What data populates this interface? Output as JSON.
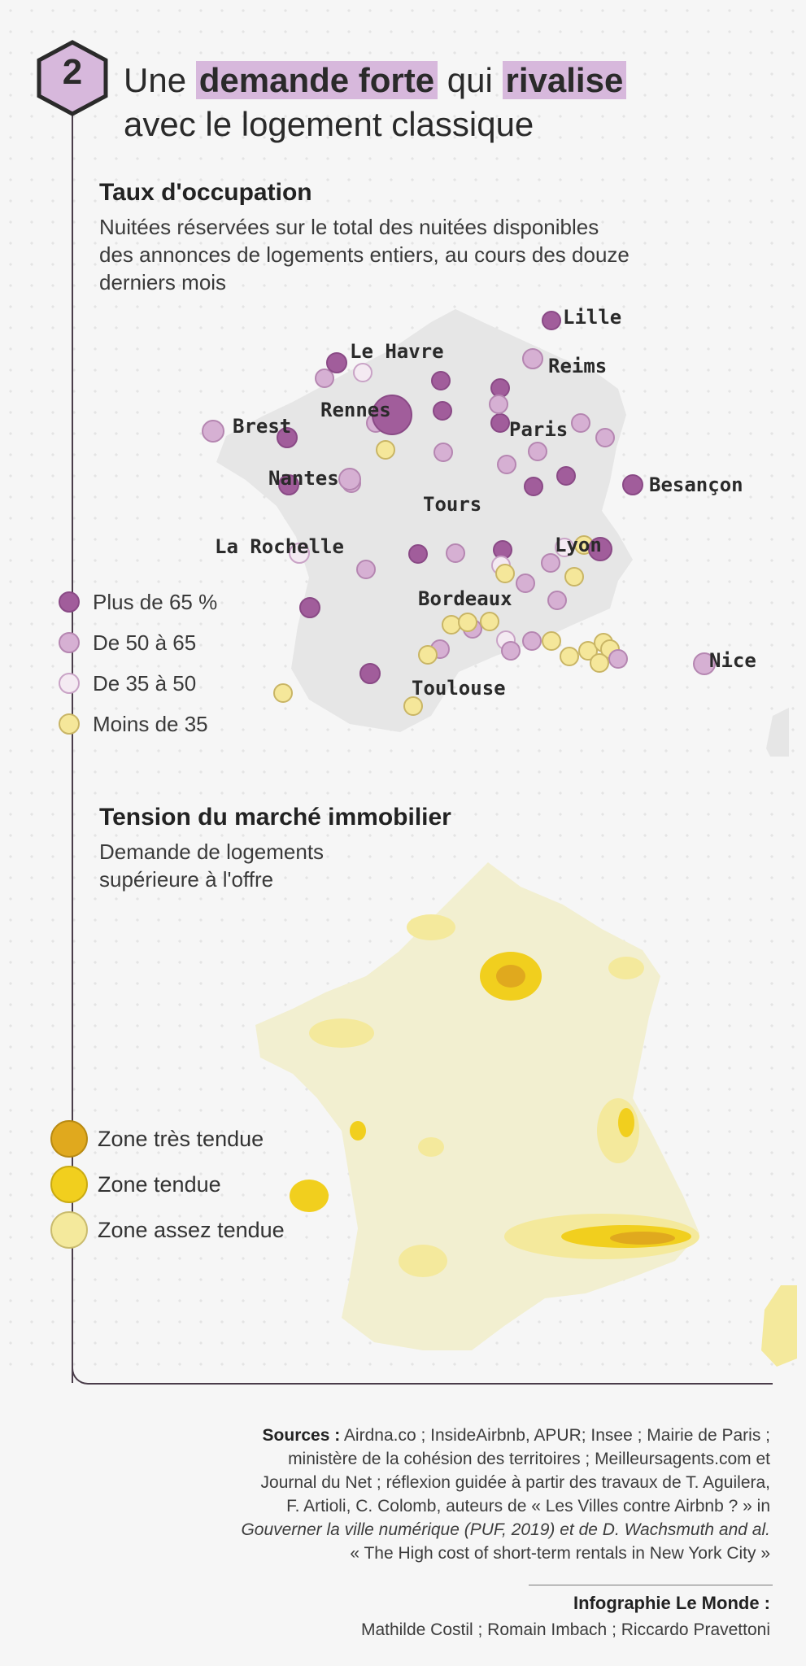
{
  "header": {
    "number": "2",
    "title_part1": "Une",
    "title_hl1": "demande forte",
    "title_part2": "qui",
    "title_hl2": "rivalise",
    "title_line2": "avec le logement classique"
  },
  "occupancy": {
    "title": "Taux d'occupation",
    "description": [
      "Nuitées réservées sur le total des nuitées disponibles",
      "des annonces de logements entiers, au cours des douze",
      "derniers mois"
    ],
    "legend": [
      {
        "label": "Plus de 65 %",
        "category": "over65",
        "fill": "#a15d9b",
        "stroke": "#8a4a86"
      },
      {
        "label": "De 50 à 65",
        "category": "50to65",
        "fill": "#d6b0d3",
        "stroke": "#b586b1"
      },
      {
        "label": "De 35 à 50",
        "category": "35to50",
        "fill": "#f4eaf2",
        "stroke": "#c9a3c6"
      },
      {
        "label": "Moins de 35",
        "category": "under35",
        "fill": "#f5e79a",
        "stroke": "#c9b565"
      }
    ],
    "cities": [
      {
        "name": "Lille",
        "category": "over65"
      },
      {
        "name": "Le Havre",
        "category": "over65"
      },
      {
        "name": "Reims",
        "category": "50to65"
      },
      {
        "name": "Paris",
        "category": "over65"
      },
      {
        "name": "Brest",
        "category": "50to65"
      },
      {
        "name": "Rennes",
        "category": "over65"
      },
      {
        "name": "Nantes",
        "category": "over65"
      },
      {
        "name": "Tours",
        "category": "50to65"
      },
      {
        "name": "Besançon",
        "category": "over65"
      },
      {
        "name": "La Rochelle",
        "category": "35to50"
      },
      {
        "name": "Lyon",
        "category": "over65"
      },
      {
        "name": "Bordeaux",
        "category": "over65"
      },
      {
        "name": "Toulouse",
        "category": "over65"
      },
      {
        "name": "Nice",
        "category": "50to65"
      }
    ]
  },
  "tension": {
    "title": "Tension du marché immobilier",
    "description": [
      "Demande de logements",
      "supérieure à l'offre"
    ],
    "legend": [
      {
        "label": "Zone très tendue",
        "fill": "#e0a91e",
        "stroke": "#b88a12"
      },
      {
        "label": "Zone tendue",
        "fill": "#f1cf1e",
        "stroke": "#c9aa12"
      },
      {
        "label": "Zone assez tendue",
        "fill": "#f4e99c",
        "stroke": "#c9bb6e"
      }
    ]
  },
  "sources": {
    "label": "Sources :",
    "text": [
      "Airdna.co ; InsideAirbnb, APUR; Insee ; Mairie de Paris ;",
      "ministère de la cohésion des territoires ; Meilleursagents.com et",
      "Journal du Net ; réflexion guidée à partir des travaux de  T. Aguilera,",
      "F. Artioli, C. Colomb, auteurs de « Les Villes contre Airbnb ? » in",
      "Gouverner la ville numérique (PUF, 2019) et de D. Wachsmuth and al.",
      "« The High cost of short-term rentals in New York City »"
    ]
  },
  "credits": {
    "title": "Infographie Le Monde :",
    "names": "Mathilde Costil ; Romain Imbach ; Riccardo Pravettoni"
  }
}
